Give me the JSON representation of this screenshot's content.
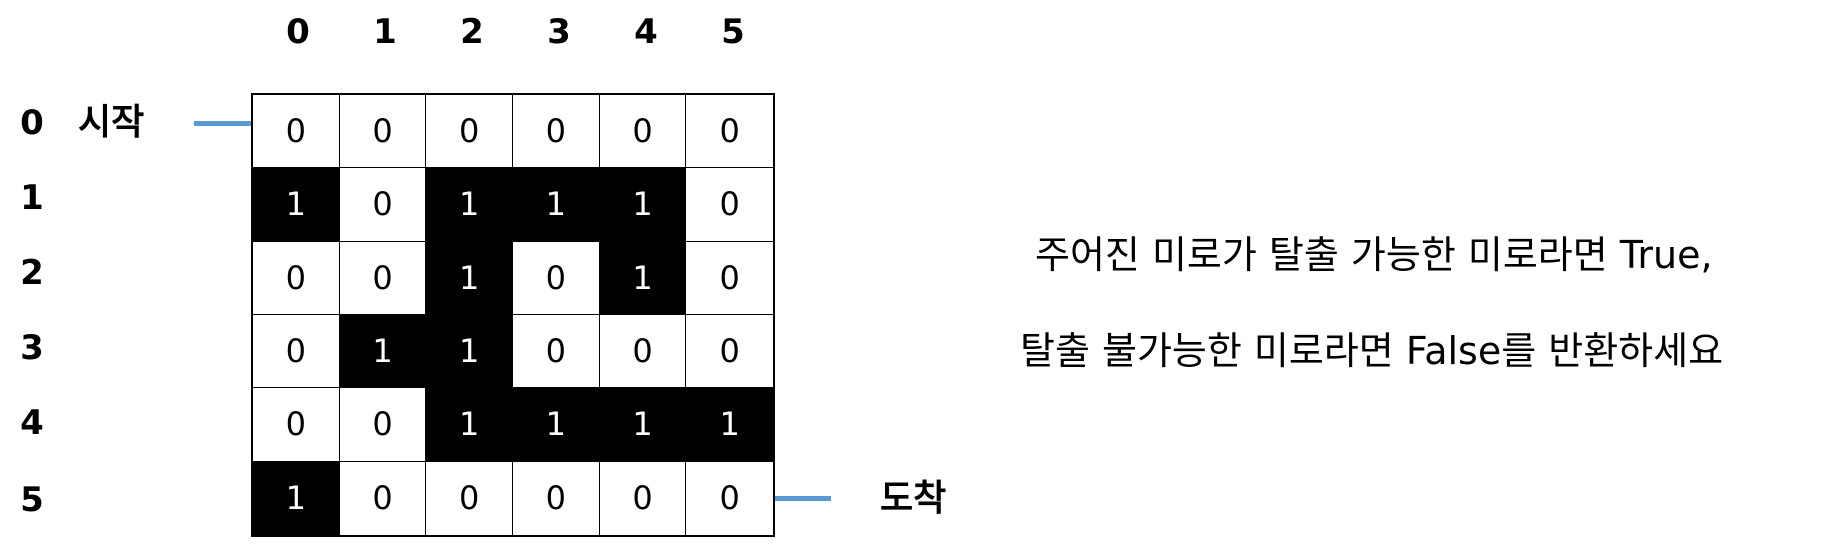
{
  "col_labels": [
    "0",
    "1",
    "2",
    "3",
    "4",
    "5"
  ],
  "row_labels": [
    "0",
    "1",
    "2",
    "3",
    "4",
    "5"
  ],
  "start_label": "시작",
  "end_label": "도착",
  "connector_color": "#5b9bd5",
  "maze": [
    [
      0,
      0,
      0,
      0,
      0,
      0
    ],
    [
      1,
      0,
      1,
      1,
      1,
      0
    ],
    [
      0,
      0,
      1,
      0,
      1,
      0
    ],
    [
      0,
      1,
      1,
      0,
      0,
      0
    ],
    [
      0,
      0,
      1,
      1,
      1,
      1
    ],
    [
      1,
      0,
      0,
      0,
      0,
      0
    ]
  ],
  "description": {
    "line1": "주어진 미로가 탈출 가능한 미로라면 True,",
    "line2": "탈출 불가능한 미로라면 False를 반환하세요"
  }
}
